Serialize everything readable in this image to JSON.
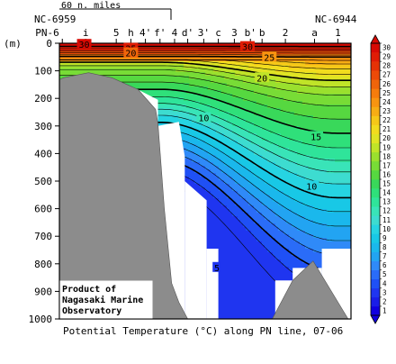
{
  "chart_data": {
    "type": "heatmap",
    "title": "Potential Temperature (°C) along PN line, 07-06",
    "ylabel": "(m)",
    "ylim": [
      0,
      1000
    ],
    "y_ticks": [
      0,
      100,
      200,
      300,
      400,
      500,
      600,
      700,
      800,
      900,
      1000
    ],
    "stations": [
      "PN-6",
      "i",
      "5",
      "h",
      "4'",
      "f'",
      "4",
      "d'",
      "3'",
      "c",
      "3",
      "b'",
      "b",
      "2",
      "a",
      "1"
    ],
    "end_stations": {
      "left": "NC-6959",
      "right": "NC-6944"
    },
    "scale_bar_label": "60 n. miles",
    "colorbar": {
      "min": 1,
      "max": 30,
      "labels": [
        1,
        2,
        3,
        4,
        5,
        6,
        7,
        8,
        9,
        10,
        11,
        12,
        13,
        14,
        15,
        16,
        17,
        18,
        19,
        20,
        21,
        22,
        23,
        24,
        25,
        26,
        27,
        28,
        29,
        30
      ],
      "colors": [
        "#1000e0",
        "#1a1de8",
        "#1f35f0",
        "#1f50f5",
        "#2a6cf8",
        "#2f8af8",
        "#22a4f2",
        "#1ab8ec",
        "#18c8e6",
        "#26d4e2",
        "#3ddcd0",
        "#39e4b8",
        "#2fe49a",
        "#2fe07a",
        "#39d85a",
        "#56d840",
        "#78dc36",
        "#9ae02e",
        "#c0e428",
        "#e0e424",
        "#f2dc1e",
        "#f6c818",
        "#f7ad14",
        "#f89410",
        "#f57c0c",
        "#f0640a",
        "#ec4a08",
        "#e53206",
        "#e01c05",
        "#d80a04"
      ]
    },
    "contour_labels": [
      {
        "value": 30,
        "distance_frac": 0.085,
        "depth": 4
      },
      {
        "value": 30,
        "distance_frac": 0.645,
        "depth": 12
      },
      {
        "value": 25,
        "distance_frac": 0.245,
        "depth": 18
      },
      {
        "value": 25,
        "distance_frac": 0.72,
        "depth": 50
      },
      {
        "value": 20,
        "distance_frac": 0.245,
        "depth": 35
      },
      {
        "value": 20,
        "distance_frac": 0.695,
        "depth": 125
      },
      {
        "value": 15,
        "distance_frac": 0.88,
        "depth": 338
      },
      {
        "value": 10,
        "distance_frac": 0.495,
        "depth": 270
      },
      {
        "value": 10,
        "distance_frac": 0.865,
        "depth": 518
      },
      {
        "value": 5,
        "distance_frac": 0.54,
        "depth": 813
      }
    ],
    "grid": false,
    "legend": "right"
  },
  "annotation": "Product of\nNagasaki Marine\nObservatory"
}
